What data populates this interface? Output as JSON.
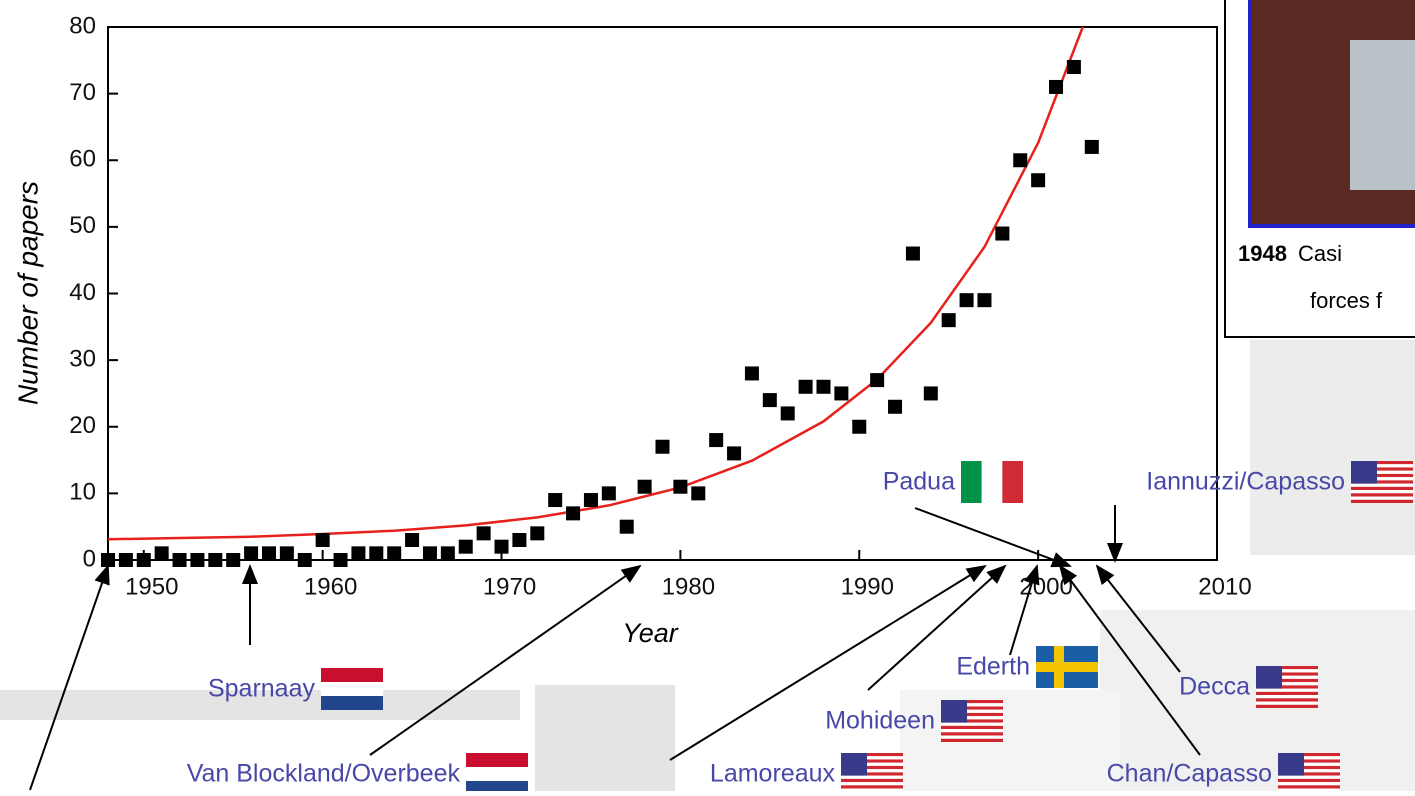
{
  "chart_data": {
    "type": "scatter",
    "xlabel": "Year",
    "ylabel": "Number of papers",
    "x": [
      1948,
      1949,
      1950,
      1951,
      1952,
      1953,
      1954,
      1955,
      1956,
      1957,
      1958,
      1959,
      1960,
      1961,
      1962,
      1963,
      1964,
      1965,
      1966,
      1967,
      1968,
      1969,
      1970,
      1971,
      1972,
      1973,
      1974,
      1975,
      1976,
      1977,
      1978,
      1979,
      1980,
      1981,
      1982,
      1983,
      1984,
      1985,
      1986,
      1987,
      1988,
      1989,
      1990,
      1991,
      1992,
      1993,
      1994,
      1995,
      1996,
      1997,
      1998,
      1999,
      2000,
      2001,
      2002,
      2003
    ],
    "values": [
      0,
      0,
      0,
      1,
      0,
      0,
      0,
      0,
      1,
      1,
      1,
      0,
      3,
      0,
      1,
      1,
      1,
      3,
      1,
      1,
      2,
      4,
      2,
      3,
      4,
      9,
      7,
      9,
      10,
      5,
      11,
      17,
      11,
      10,
      18,
      16,
      28,
      24,
      22,
      26,
      26,
      25,
      20,
      27,
      23,
      46,
      25,
      36,
      39,
      39,
      49,
      60,
      57,
      71,
      74,
      62
    ],
    "color": "#000000",
    "fit": {
      "x": [
        1948,
        1952,
        1956,
        1960,
        1964,
        1968,
        1972,
        1976,
        1980,
        1984,
        1988,
        1991,
        1994,
        1997,
        2000,
        2002.5
      ],
      "values": [
        3.1,
        3.3,
        3.5,
        3.9,
        4.4,
        5.2,
        6.4,
        8.2,
        10.9,
        14.9,
        20.8,
        27.1,
        35.6,
        47,
        62.6,
        80
      ],
      "color": "#e8201c"
    },
    "xlim": [
      1948,
      2010
    ],
    "ylim": [
      0,
      80
    ],
    "xticks": [
      1950,
      1960,
      1970,
      1980,
      1990,
      2000,
      2010
    ],
    "yticks": [
      0,
      10,
      20,
      30,
      40,
      50,
      60,
      70,
      80
    ],
    "annotations": [
      {
        "text": "Sparnaay"
      },
      {
        "text": "Van Blockland/Overbeek"
      },
      {
        "text": "Lamoreaux"
      },
      {
        "text": "Mohideen"
      },
      {
        "text": "Ederth"
      },
      {
        "text": "Padua"
      },
      {
        "text": "Iannuzzi/Capasso"
      },
      {
        "text": "Decca"
      },
      {
        "text": "Chan/Capasso"
      }
    ]
  },
  "inset": {
    "year": "1948",
    "caption1": "Casi",
    "caption2": "forces f"
  }
}
